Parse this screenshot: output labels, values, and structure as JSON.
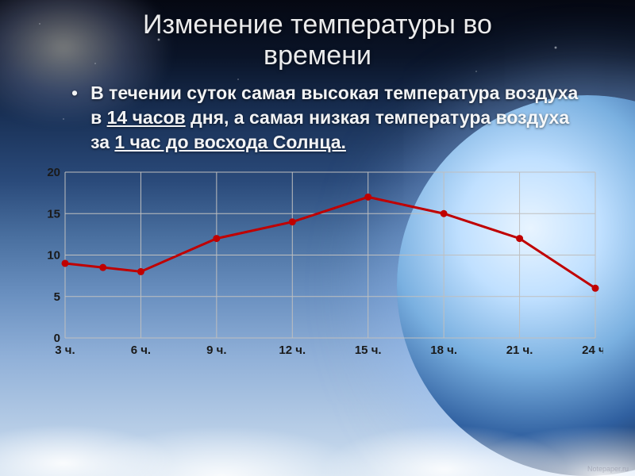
{
  "title_line1": "Изменение температуры во",
  "title_line2": "времени",
  "paragraph": {
    "pre1": "В течении суток самая высокая температура воздуха  в ",
    "hl1": "14 часов",
    "mid": " дня, а  самая  низкая температура воздуха  за  ",
    "hl2": "1 час до восхода Солнца."
  },
  "chart": {
    "type": "line",
    "x_labels": [
      "3 ч.",
      "6 ч.",
      "9 ч.",
      "12 ч.",
      "15 ч.",
      "18 ч.",
      "21 ч.",
      "24 ч."
    ],
    "x_positions": [
      0,
      1,
      2,
      3,
      4,
      5,
      6,
      7
    ],
    "values": [
      9,
      8.5,
      8,
      12,
      14,
      17,
      15,
      12,
      6
    ],
    "value_x": [
      0,
      0.5,
      1,
      2,
      3,
      4,
      5,
      6,
      7
    ],
    "ylim": [
      0,
      20
    ],
    "ytick_step": 5,
    "y_ticks": [
      0,
      5,
      10,
      15,
      20
    ],
    "line_color": "#c00000",
    "line_width": 3,
    "marker_radius": 4.5,
    "marker_fill": "#c00000",
    "grid_color": "#bfbfbf",
    "plot_bg": "rgba(255,255,255,0.0)",
    "tick_font_size": 15,
    "tick_font_color": "#1a1a1a",
    "tick_font_weight": "700"
  },
  "colors": {
    "title_color": "rgba(255,255,255,0.92)",
    "body_color": "rgba(255,255,255,0.95)"
  },
  "watermark": "Notepaper.ru"
}
